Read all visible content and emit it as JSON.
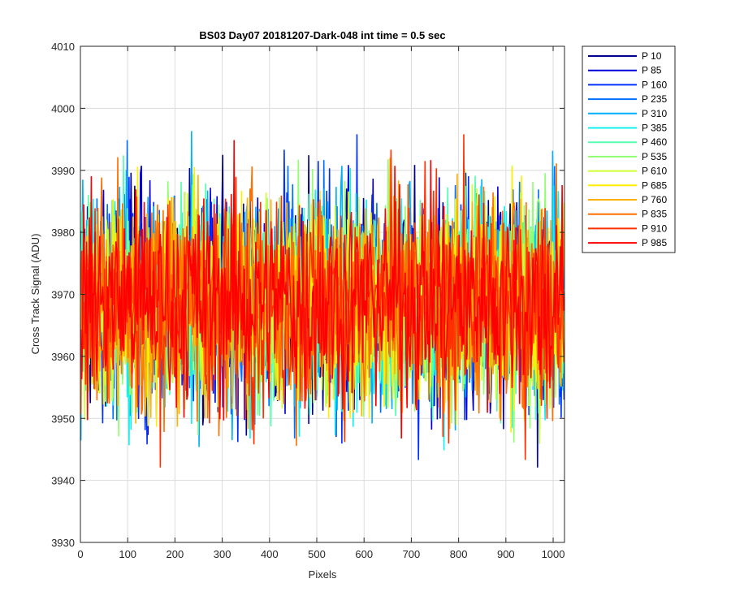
{
  "chart_data": {
    "type": "line",
    "title": "BS03 Day07 20181207-Dark-048 int time = 0.5 sec",
    "xlabel": "Pixels",
    "ylabel": "Cross Track Signal (ADU)",
    "xlim": [
      0,
      1024
    ],
    "ylim": [
      3930,
      4010
    ],
    "xticks": [
      0,
      100,
      200,
      300,
      400,
      500,
      600,
      700,
      800,
      900,
      1000
    ],
    "yticks": [
      3930,
      3940,
      3950,
      3960,
      3970,
      3980,
      3990,
      4000,
      4010
    ],
    "grid": true,
    "legend_position": "outside-top-right",
    "noise_description": {
      "mean": 3969,
      "typical_range": [
        3950,
        3990
      ],
      "extreme_range": [
        3938,
        4002
      ]
    },
    "series": [
      {
        "name": "P 10",
        "color": "#00008f"
      },
      {
        "name": "P 85",
        "color": "#0000d9"
      },
      {
        "name": "P 160",
        "color": "#0030ff"
      },
      {
        "name": "P 235",
        "color": "#0070ff"
      },
      {
        "name": "P 310",
        "color": "#00b0ff"
      },
      {
        "name": "P 385",
        "color": "#10f0ef"
      },
      {
        "name": "P 460",
        "color": "#50ffaf"
      },
      {
        "name": "P 535",
        "color": "#90ff70"
      },
      {
        "name": "P 610",
        "color": "#d0ff30"
      },
      {
        "name": "P 685",
        "color": "#ffee00"
      },
      {
        "name": "P 760",
        "color": "#ffb000"
      },
      {
        "name": "P 835",
        "color": "#ff7000"
      },
      {
        "name": "P 910",
        "color": "#ff3000"
      },
      {
        "name": "P 985",
        "color": "#ff0000"
      }
    ]
  }
}
